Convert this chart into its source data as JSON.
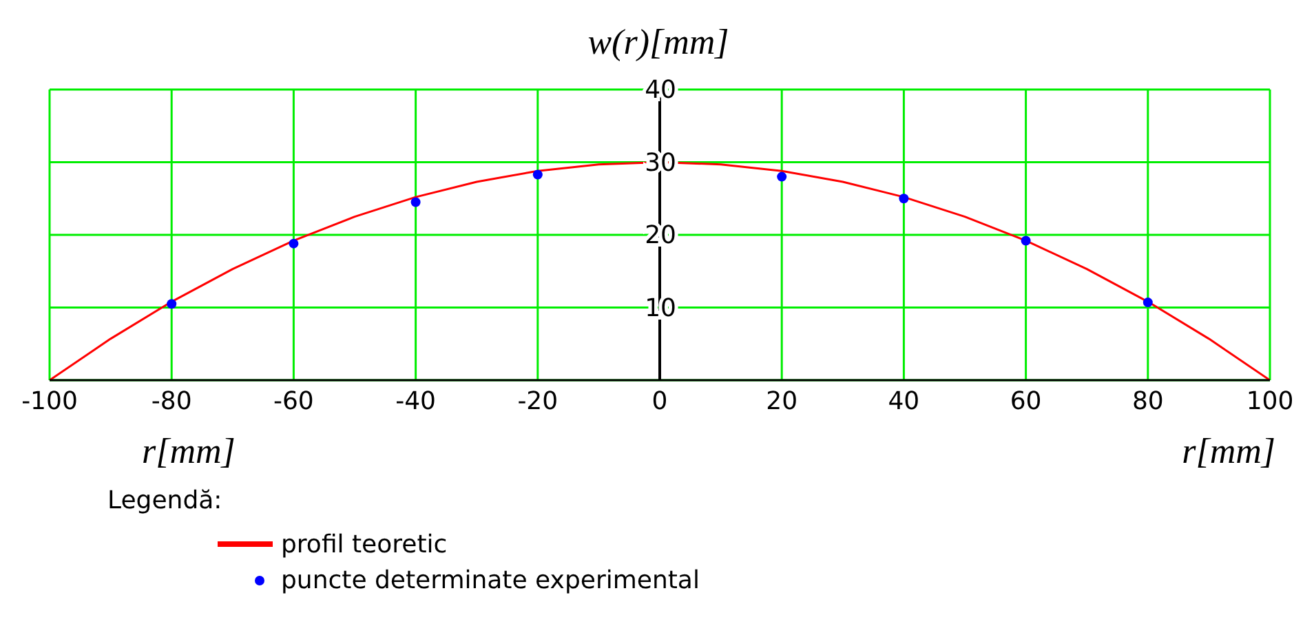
{
  "chart_data": {
    "type": "line",
    "ylabel": "w(r)[mm]",
    "xlabel": "r[mm]",
    "annotations": [
      "r[mm]"
    ],
    "legend_title": "Legendă:",
    "legend": "bottom",
    "grid": true,
    "xlim": [
      -100,
      100
    ],
    "xticks": [
      -100,
      -80,
      -60,
      -40,
      -20,
      0,
      20,
      40,
      60,
      80,
      100
    ],
    "ylim": [
      0,
      40
    ],
    "yticks": [
      {
        "value": 0,
        "label": null
      },
      10,
      20,
      30,
      40
    ],
    "series": [
      {
        "name": "profil teoretic",
        "color": "#ff0000",
        "line_style": "solid",
        "marker": "none",
        "x": [
          -100,
          -90,
          -80,
          -70,
          -60,
          -50,
          -40,
          -30,
          -20,
          -10,
          0,
          10,
          20,
          30,
          40,
          50,
          60,
          70,
          80,
          90,
          100
        ],
        "values": [
          0,
          5.7,
          10.8,
          15.3,
          19.2,
          22.5,
          25.2,
          27.3,
          28.8,
          29.7,
          30,
          29.7,
          28.8,
          27.3,
          25.2,
          22.5,
          19.2,
          15.3,
          10.8,
          5.7,
          0
        ]
      },
      {
        "name": "puncte determinate experimental",
        "type": "scatter",
        "color": "#0000ff",
        "marker": "circle",
        "x": [
          -80,
          -60,
          -40,
          -20,
          20,
          40,
          60,
          80
        ],
        "values": [
          10.5,
          18.8,
          24.5,
          28.3,
          28,
          25,
          19.2,
          10.7
        ]
      }
    ]
  }
}
